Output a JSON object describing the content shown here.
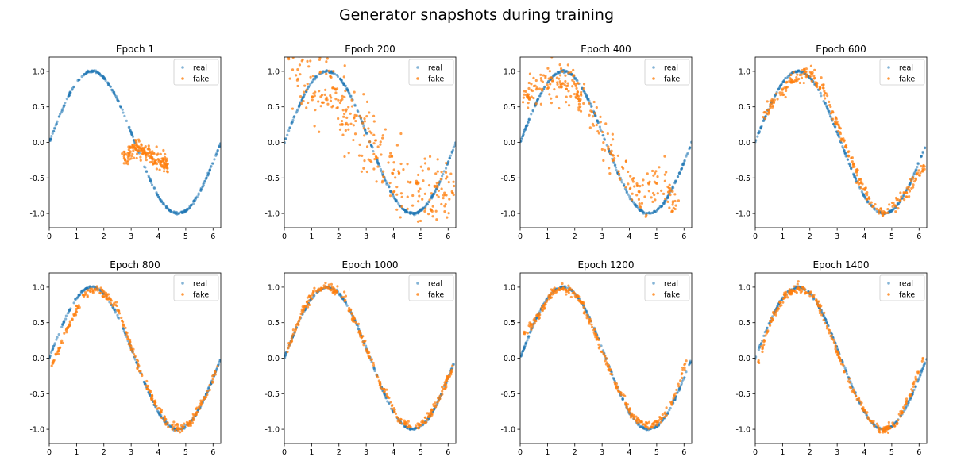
{
  "figure": {
    "suptitle": "Generator snapshots during training",
    "colors": {
      "real": "#1f77b4",
      "fake": "#ff7f0e"
    }
  },
  "chart_data": [
    {
      "type": "scatter",
      "title": "Epoch 1",
      "xlim": [
        0,
        6.283
      ],
      "ylim": [
        -1.2,
        1.2
      ],
      "xticks": [
        0,
        1,
        2,
        3,
        4,
        5,
        6
      ],
      "yticks": [
        -1.0,
        -0.5,
        0.0,
        0.5,
        1.0
      ],
      "legend": {
        "position": "upper-right",
        "entries": [
          "real",
          "fake"
        ]
      },
      "series": [
        {
          "name": "real",
          "function": "sin(x)",
          "x_range": [
            0,
            6.283
          ],
          "n_points": 300
        },
        {
          "name": "fake",
          "n_points": 180,
          "spread": 0.06,
          "curve_points": [
            [
              2.7,
              -0.22
            ],
            [
              3.0,
              -0.12
            ],
            [
              3.2,
              -0.07
            ],
            [
              3.5,
              -0.13
            ],
            [
              3.9,
              -0.24
            ],
            [
              4.35,
              -0.32
            ]
          ]
        }
      ]
    },
    {
      "type": "scatter",
      "title": "Epoch 200",
      "xlim": [
        0,
        6.283
      ],
      "ylim": [
        -1.2,
        1.2
      ],
      "xticks": [
        0,
        1,
        2,
        3,
        4,
        5,
        6
      ],
      "yticks": [
        -1.0,
        -0.5,
        0.0,
        0.5,
        1.0
      ],
      "legend": {
        "position": "upper-right",
        "entries": [
          "real",
          "fake"
        ]
      },
      "series": [
        {
          "name": "real",
          "function": "sin(x)",
          "x_range": [
            0,
            6.283
          ],
          "n_points": 300
        },
        {
          "name": "fake",
          "n_points": 300,
          "spread": 0.28,
          "curve_points": [
            [
              0.2,
              1.05
            ],
            [
              1.0,
              0.8
            ],
            [
              2.0,
              0.55
            ],
            [
              3.0,
              0.05
            ],
            [
              4.0,
              -0.45
            ],
            [
              5.0,
              -0.75
            ],
            [
              6.2,
              -0.7
            ]
          ]
        }
      ]
    },
    {
      "type": "scatter",
      "title": "Epoch 400",
      "xlim": [
        0,
        6.283
      ],
      "ylim": [
        -1.2,
        1.2
      ],
      "xticks": [
        0,
        1,
        2,
        3,
        4,
        5,
        6
      ],
      "yticks": [
        -1.0,
        -0.5,
        0.0,
        0.5,
        1.0
      ],
      "legend": {
        "position": "upper-right",
        "entries": [
          "real",
          "fake"
        ]
      },
      "series": [
        {
          "name": "real",
          "function": "sin(x)",
          "x_range": [
            0,
            6.283
          ],
          "n_points": 300
        },
        {
          "name": "fake",
          "n_points": 260,
          "spread": 0.14,
          "curve_points": [
            [
              0.1,
              0.6
            ],
            [
              1.0,
              0.85
            ],
            [
              2.0,
              0.75
            ],
            [
              3.0,
              0.1
            ],
            [
              3.8,
              -0.5
            ],
            [
              4.5,
              -0.75
            ],
            [
              5.2,
              -0.55
            ],
            [
              5.8,
              -0.95
            ]
          ]
        }
      ]
    },
    {
      "type": "scatter",
      "title": "Epoch 600",
      "xlim": [
        0,
        6.283
      ],
      "ylim": [
        -1.2,
        1.2
      ],
      "xticks": [
        0,
        1,
        2,
        3,
        4,
        5,
        6
      ],
      "yticks": [
        -1.0,
        -0.5,
        0.0,
        0.5,
        1.0
      ],
      "legend": {
        "position": "upper-right",
        "entries": [
          "real",
          "fake"
        ]
      },
      "series": [
        {
          "name": "real",
          "function": "sin(x)",
          "x_range": [
            0,
            6.283
          ],
          "n_points": 300
        },
        {
          "name": "fake",
          "n_points": 260,
          "spread": 0.05,
          "curve_points": [
            [
              0.3,
              0.35
            ],
            [
              0.8,
              0.65
            ],
            [
              1.4,
              0.88
            ],
            [
              1.9,
              1.0
            ],
            [
              2.5,
              0.75
            ],
            [
              3.2,
              0.05
            ],
            [
              3.8,
              -0.5
            ],
            [
              4.3,
              -0.9
            ],
            [
              4.7,
              -1.02
            ],
            [
              5.2,
              -0.85
            ],
            [
              5.7,
              -0.6
            ],
            [
              6.2,
              -0.3
            ]
          ]
        }
      ]
    },
    {
      "type": "scatter",
      "title": "Epoch 800",
      "xlim": [
        0,
        6.283
      ],
      "ylim": [
        -1.2,
        1.2
      ],
      "xticks": [
        0,
        1,
        2,
        3,
        4,
        5,
        6
      ],
      "yticks": [
        -1.0,
        -0.5,
        0.0,
        0.5,
        1.0
      ],
      "legend": {
        "position": "upper-right",
        "entries": [
          "real",
          "fake"
        ]
      },
      "series": [
        {
          "name": "real",
          "function": "sin(x)",
          "x_range": [
            0,
            6.283
          ],
          "n_points": 300
        },
        {
          "name": "fake",
          "n_points": 260,
          "spread": 0.03,
          "curve_points": [
            [
              0.1,
              -0.1
            ],
            [
              0.7,
              0.45
            ],
            [
              1.3,
              0.9
            ],
            [
              1.8,
              0.98
            ],
            [
              2.5,
              0.72
            ],
            [
              3.2,
              -0.05
            ],
            [
              3.8,
              -0.58
            ],
            [
              4.3,
              -0.9
            ],
            [
              4.8,
              -1.0
            ],
            [
              5.2,
              -0.9
            ],
            [
              5.7,
              -0.55
            ],
            [
              6.2,
              -0.1
            ]
          ]
        }
      ]
    },
    {
      "type": "scatter",
      "title": "Epoch 1000",
      "xlim": [
        0,
        6.283
      ],
      "ylim": [
        -1.2,
        1.2
      ],
      "xticks": [
        0,
        1,
        2,
        3,
        4,
        5,
        6
      ],
      "yticks": [
        -1.0,
        -0.5,
        0.0,
        0.5,
        1.0
      ],
      "legend": {
        "position": "upper-right",
        "entries": [
          "real",
          "fake"
        ]
      },
      "series": [
        {
          "name": "real",
          "function": "sin(x)",
          "x_range": [
            0,
            6.283
          ],
          "n_points": 300
        },
        {
          "name": "fake",
          "n_points": 260,
          "spread": 0.03,
          "curve_points": [
            [
              0.1,
              0.1
            ],
            [
              0.6,
              0.6
            ],
            [
              1.1,
              0.95
            ],
            [
              1.6,
              1.02
            ],
            [
              2.2,
              0.85
            ],
            [
              2.8,
              0.35
            ],
            [
              3.5,
              -0.35
            ],
            [
              4.2,
              -0.85
            ],
            [
              4.7,
              -0.98
            ],
            [
              5.2,
              -0.88
            ],
            [
              5.7,
              -0.55
            ],
            [
              6.2,
              -0.1
            ]
          ]
        }
      ]
    },
    {
      "type": "scatter",
      "title": "Epoch 1200",
      "xlim": [
        0,
        6.283
      ],
      "ylim": [
        -1.2,
        1.2
      ],
      "xticks": [
        0,
        1,
        2,
        3,
        4,
        5,
        6
      ],
      "yticks": [
        -1.0,
        -0.5,
        0.0,
        0.5,
        1.0
      ],
      "legend": {
        "position": "upper-right",
        "entries": [
          "real",
          "fake"
        ]
      },
      "series": [
        {
          "name": "real",
          "function": "sin(x)",
          "x_range": [
            0,
            6.283
          ],
          "n_points": 300
        },
        {
          "name": "fake",
          "n_points": 260,
          "spread": 0.03,
          "curve_points": [
            [
              0.1,
              0.3
            ],
            [
              0.6,
              0.55
            ],
            [
              1.1,
              0.9
            ],
            [
              1.6,
              1.0
            ],
            [
              2.2,
              0.82
            ],
            [
              2.8,
              0.3
            ],
            [
              3.5,
              -0.4
            ],
            [
              4.2,
              -0.85
            ],
            [
              4.7,
              -0.96
            ],
            [
              5.2,
              -0.85
            ],
            [
              5.7,
              -0.5
            ],
            [
              6.1,
              0.0
            ]
          ]
        }
      ]
    },
    {
      "type": "scatter",
      "title": "Epoch 1400",
      "xlim": [
        0,
        6.283
      ],
      "ylim": [
        -1.2,
        1.2
      ],
      "xticks": [
        0,
        1,
        2,
        3,
        4,
        5,
        6
      ],
      "yticks": [
        -1.0,
        -0.5,
        0.0,
        0.5,
        1.0
      ],
      "legend": {
        "position": "upper-right",
        "entries": [
          "real",
          "fake"
        ]
      },
      "series": [
        {
          "name": "real",
          "function": "sin(x)",
          "x_range": [
            0,
            6.283
          ],
          "n_points": 300
        },
        {
          "name": "fake",
          "n_points": 260,
          "spread": 0.03,
          "curve_points": [
            [
              0.1,
              -0.05
            ],
            [
              0.6,
              0.55
            ],
            [
              1.1,
              0.88
            ],
            [
              1.6,
              1.0
            ],
            [
              2.2,
              0.85
            ],
            [
              2.8,
              0.3
            ],
            [
              3.5,
              -0.4
            ],
            [
              4.2,
              -0.87
            ],
            [
              4.7,
              -1.03
            ],
            [
              5.2,
              -0.9
            ],
            [
              5.7,
              -0.5
            ],
            [
              6.2,
              0.05
            ]
          ]
        }
      ]
    }
  ]
}
